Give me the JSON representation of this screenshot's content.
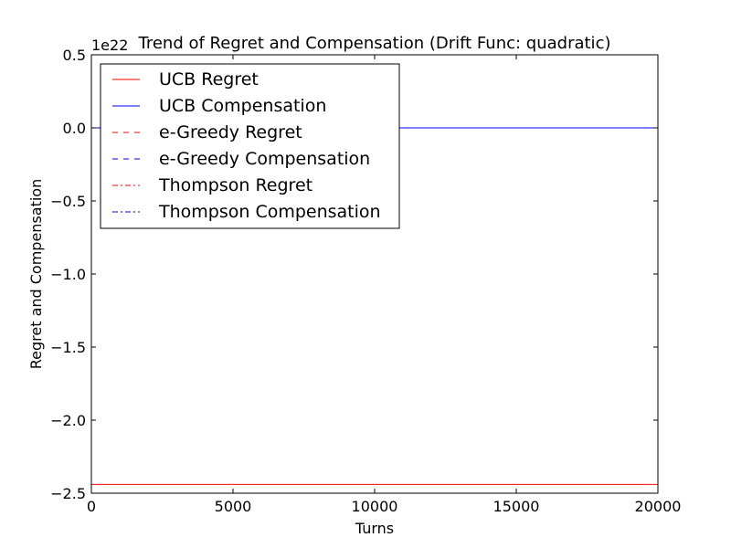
{
  "chart_data": {
    "type": "line",
    "title": "Trend of Regret and Compensation (Drift Func: quadratic)",
    "xlabel": "Turns",
    "ylabel": "Regret and Compensation",
    "y_offset_label": "1e22",
    "xlim": [
      0,
      20000
    ],
    "ylim": [
      -2.5,
      0.5
    ],
    "y_scale_note": "values in units of 1e22",
    "x_ticks": [
      0,
      5000,
      10000,
      15000,
      20000
    ],
    "x_tick_labels": [
      "0",
      "5000",
      "10000",
      "15000",
      "20000"
    ],
    "y_ticks": [
      0.5,
      0.0,
      -0.5,
      -1.0,
      -1.5,
      -2.0,
      -2.5
    ],
    "y_tick_labels": [
      "0.5",
      "0.0",
      "−0.5",
      "−1.0",
      "−1.5",
      "−2.0",
      "−2.5"
    ],
    "grid": false,
    "legend_position": "top-left",
    "series": [
      {
        "name": "UCB Regret",
        "color": "#ff0000",
        "style": "solid",
        "x": [
          0,
          20000
        ],
        "y": [
          -2.44,
          -2.44
        ]
      },
      {
        "name": "UCB Compensation",
        "color": "#0000ff",
        "style": "solid",
        "x": [
          0,
          20000
        ],
        "y": [
          0.0,
          0.0
        ]
      },
      {
        "name": "e-Greedy Regret",
        "color": "#ff0000",
        "style": "dashed",
        "x": [
          0,
          20000
        ],
        "y": [
          0.0,
          0.0
        ]
      },
      {
        "name": "e-Greedy Compensation",
        "color": "#0000ff",
        "style": "dashed",
        "x": [
          0,
          20000
        ],
        "y": [
          0.0,
          0.0
        ]
      },
      {
        "name": "Thompson Regret",
        "color": "#ff0000",
        "style": "dashdot",
        "x": [
          0,
          20000
        ],
        "y": [
          0.0,
          0.0
        ]
      },
      {
        "name": "Thompson Compensation",
        "color": "#0000ff",
        "style": "dashdot",
        "x": [
          0,
          20000
        ],
        "y": [
          0.0,
          0.0
        ]
      }
    ]
  }
}
